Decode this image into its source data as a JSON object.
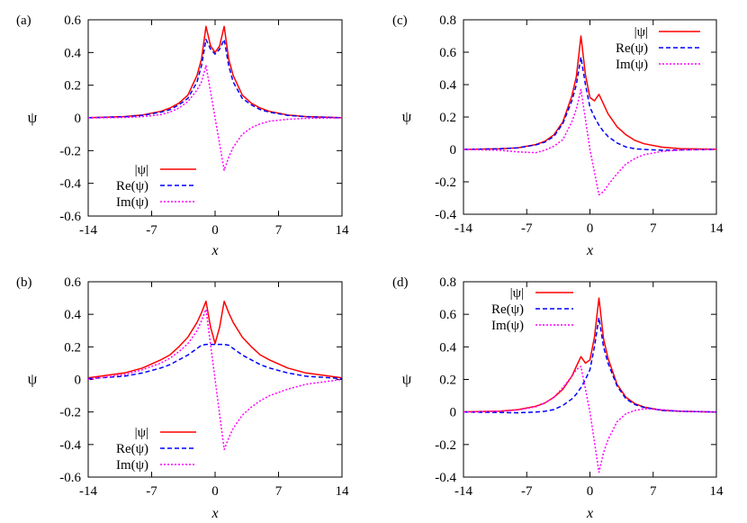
{
  "chart_data": [
    {
      "panel_label": "(a)",
      "type": "line",
      "xlabel": "x",
      "ylabel": "ψ",
      "xlim": [
        -14,
        14
      ],
      "ylim": [
        -0.6,
        0.6
      ],
      "xticks": [
        "-14",
        "-7",
        "0",
        "7",
        "14"
      ],
      "yticks": [
        "-0.6",
        "-0.4",
        "-0.2",
        "0",
        "0.2",
        "0.4",
        "0.6"
      ],
      "legend_position": "bottom-left",
      "series": [
        {
          "name": "|ψ|",
          "color": "#ff0000",
          "dash": "solid",
          "x": [
            -14,
            -10,
            -8,
            -6,
            -5,
            -4,
            -3,
            -2,
            -1.5,
            -1,
            -0.5,
            0,
            0.5,
            1,
            1.5,
            2,
            3,
            4,
            5,
            6,
            8,
            10,
            14
          ],
          "y": [
            0.001,
            0.008,
            0.018,
            0.04,
            0.06,
            0.09,
            0.14,
            0.26,
            0.36,
            0.56,
            0.44,
            0.4,
            0.44,
            0.56,
            0.36,
            0.26,
            0.14,
            0.09,
            0.06,
            0.04,
            0.018,
            0.008,
            0.001
          ]
        },
        {
          "name": "Re(ψ)",
          "color": "#0000ff",
          "dash": "dashed",
          "x": [
            -14,
            -10,
            -8,
            -6,
            -5,
            -4,
            -3,
            -2,
            -1.5,
            -1,
            -0.5,
            0,
            0.5,
            1,
            1.5,
            2,
            3,
            4,
            5,
            6,
            8,
            10,
            14
          ],
          "y": [
            0.001,
            0.007,
            0.016,
            0.035,
            0.05,
            0.08,
            0.12,
            0.22,
            0.32,
            0.48,
            0.42,
            0.39,
            0.42,
            0.48,
            0.32,
            0.22,
            0.12,
            0.08,
            0.05,
            0.035,
            0.016,
            0.007,
            0.001
          ]
        },
        {
          "name": "Im(ψ)",
          "color": "#ff00ff",
          "dash": "dotted",
          "x": [
            -14,
            -10,
            -8,
            -6,
            -5,
            -4,
            -3,
            -2,
            -1.5,
            -1,
            0,
            1,
            1.5,
            2,
            3,
            4,
            5,
            6,
            8,
            10,
            14
          ],
          "y": [
            0.0,
            0.003,
            0.008,
            0.02,
            0.035,
            0.06,
            0.1,
            0.17,
            0.22,
            0.32,
            0.0,
            -0.32,
            -0.24,
            -0.18,
            -0.1,
            -0.06,
            -0.035,
            -0.02,
            -0.008,
            -0.003,
            0.0
          ]
        }
      ]
    },
    {
      "panel_label": "(c)",
      "type": "line",
      "xlabel": "x",
      "ylabel": "ψ",
      "xlim": [
        -14,
        14
      ],
      "ylim": [
        -0.4,
        0.8
      ],
      "xticks": [
        "-14",
        "-7",
        "0",
        "7",
        "14"
      ],
      "yticks": [
        "-0.4",
        "-0.2",
        "0",
        "0.2",
        "0.4",
        "0.6",
        "0.8"
      ],
      "legend_position": "top-right",
      "series": [
        {
          "name": "|ψ|",
          "color": "#ff0000",
          "dash": "solid",
          "x": [
            -14,
            -10,
            -8,
            -6,
            -5,
            -4,
            -3,
            -2,
            -1.5,
            -1,
            -0.5,
            0,
            0.5,
            1,
            1.5,
            2,
            3,
            4,
            5,
            6,
            8,
            10,
            14
          ],
          "y": [
            0.0,
            0.004,
            0.01,
            0.03,
            0.05,
            0.09,
            0.17,
            0.33,
            0.45,
            0.7,
            0.46,
            0.32,
            0.3,
            0.34,
            0.28,
            0.22,
            0.14,
            0.09,
            0.055,
            0.035,
            0.014,
            0.005,
            0.001
          ]
        },
        {
          "name": "Re(ψ)",
          "color": "#0000ff",
          "dash": "dashed",
          "x": [
            -14,
            -10,
            -8,
            -6,
            -5,
            -4,
            -3,
            -2,
            -1.5,
            -1,
            -0.5,
            0,
            0.5,
            1,
            1.5,
            2,
            3,
            4,
            5,
            6,
            8,
            10,
            14
          ],
          "y": [
            0.0,
            0.004,
            0.01,
            0.028,
            0.045,
            0.08,
            0.16,
            0.3,
            0.4,
            0.57,
            0.4,
            0.26,
            0.2,
            0.15,
            0.11,
            0.08,
            0.04,
            0.015,
            0.004,
            0.0,
            -0.005,
            -0.003,
            0.0
          ]
        },
        {
          "name": "Im(ψ)",
          "color": "#ff00ff",
          "dash": "dotted",
          "x": [
            -14,
            -10,
            -8,
            -6,
            -5,
            -4,
            -3,
            -2,
            -1.5,
            -1,
            0,
            1,
            1.5,
            2,
            3,
            4,
            5,
            6,
            8,
            10,
            14
          ],
          "y": [
            0.0,
            -0.005,
            -0.015,
            -0.02,
            -0.005,
            0.02,
            0.06,
            0.17,
            0.25,
            0.37,
            0.0,
            -0.28,
            -0.26,
            -0.22,
            -0.15,
            -0.09,
            -0.055,
            -0.032,
            -0.012,
            -0.004,
            0.0
          ]
        }
      ]
    },
    {
      "panel_label": "(b)",
      "type": "line",
      "xlabel": "x",
      "ylabel": "ψ",
      "xlim": [
        -14,
        14
      ],
      "ylim": [
        -0.6,
        0.6
      ],
      "xticks": [
        "-14",
        "-7",
        "0",
        "7",
        "14"
      ],
      "yticks": [
        "-0.6",
        "-0.4",
        "-0.2",
        "0",
        "0.2",
        "0.4",
        "0.6"
      ],
      "legend_position": "bottom-left",
      "series": [
        {
          "name": "|ψ|",
          "color": "#ff0000",
          "dash": "solid",
          "x": [
            -14,
            -10,
            -8,
            -6,
            -5,
            -4,
            -3,
            -2,
            -1.5,
            -1,
            -0.5,
            0,
            0.5,
            1,
            1.5,
            2,
            3,
            4,
            5,
            6,
            8,
            10,
            14
          ],
          "y": [
            0.01,
            0.04,
            0.07,
            0.12,
            0.15,
            0.2,
            0.26,
            0.35,
            0.41,
            0.48,
            0.32,
            0.22,
            0.32,
            0.48,
            0.41,
            0.35,
            0.26,
            0.2,
            0.15,
            0.12,
            0.07,
            0.04,
            0.01
          ]
        },
        {
          "name": "Re(ψ)",
          "color": "#0000ff",
          "dash": "dashed",
          "x": [
            -14,
            -10,
            -8,
            -6,
            -5,
            -4,
            -3,
            -2,
            -1.5,
            -1,
            -0.5,
            0,
            0.5,
            1,
            1.5,
            2,
            3,
            4,
            5,
            6,
            8,
            10,
            14
          ],
          "y": [
            0.005,
            0.02,
            0.04,
            0.07,
            0.09,
            0.12,
            0.15,
            0.19,
            0.21,
            0.215,
            0.215,
            0.215,
            0.215,
            0.215,
            0.21,
            0.19,
            0.15,
            0.12,
            0.09,
            0.07,
            0.04,
            0.02,
            0.005
          ]
        },
        {
          "name": "Im(ψ)",
          "color": "#ff00ff",
          "dash": "dotted",
          "x": [
            -14,
            -10,
            -8,
            -6,
            -5,
            -4,
            -3,
            -2,
            -1.5,
            -1,
            0,
            1,
            1.5,
            2,
            3,
            4,
            5,
            6,
            8,
            10,
            14
          ],
          "y": [
            0.0,
            0.03,
            0.06,
            0.1,
            0.13,
            0.17,
            0.22,
            0.3,
            0.36,
            0.43,
            0.0,
            -0.43,
            -0.36,
            -0.3,
            -0.22,
            -0.17,
            -0.13,
            -0.1,
            -0.06,
            -0.03,
            0.0
          ]
        }
      ]
    },
    {
      "panel_label": "(d)",
      "type": "line",
      "xlabel": "x",
      "ylabel": "ψ",
      "xlim": [
        -14,
        14
      ],
      "ylim": [
        -0.4,
        0.8
      ],
      "xticks": [
        "-14",
        "-7",
        "0",
        "7",
        "14"
      ],
      "yticks": [
        "-0.4",
        "-0.2",
        "0",
        "0.2",
        "0.4",
        "0.6",
        "0.8"
      ],
      "legend_position": "top-left",
      "series": [
        {
          "name": "|ψ|",
          "color": "#ff0000",
          "dash": "solid",
          "x": [
            -14,
            -10,
            -8,
            -6,
            -5,
            -4,
            -3,
            -2,
            -1.5,
            -1,
            -0.5,
            0,
            0.5,
            1,
            1.5,
            2,
            3,
            4,
            5,
            6,
            8,
            10,
            14
          ],
          "y": [
            0.001,
            0.005,
            0.014,
            0.035,
            0.055,
            0.09,
            0.14,
            0.22,
            0.28,
            0.34,
            0.3,
            0.32,
            0.46,
            0.7,
            0.45,
            0.33,
            0.17,
            0.09,
            0.05,
            0.03,
            0.01,
            0.004,
            0.0
          ]
        },
        {
          "name": "Re(ψ)",
          "color": "#0000ff",
          "dash": "dashed",
          "x": [
            -14,
            -10,
            -8,
            -6,
            -5,
            -4,
            -3,
            -2,
            -1.5,
            -1,
            -0.5,
            0,
            0.5,
            1,
            1.5,
            2,
            3,
            4,
            5,
            6,
            8,
            10,
            14
          ],
          "y": [
            0.0,
            -0.003,
            -0.005,
            0.0,
            0.004,
            0.015,
            0.04,
            0.08,
            0.11,
            0.15,
            0.2,
            0.26,
            0.4,
            0.58,
            0.4,
            0.3,
            0.16,
            0.08,
            0.045,
            0.028,
            0.01,
            0.004,
            0.0
          ]
        },
        {
          "name": "Im(ψ)",
          "color": "#ff00ff",
          "dash": "dotted",
          "x": [
            -14,
            -10,
            -8,
            -6,
            -5,
            -4,
            -3,
            -2,
            -1.5,
            -1,
            0,
            1,
            1.5,
            2,
            3,
            4,
            5,
            6,
            8,
            10,
            14
          ],
          "y": [
            0.0,
            0.004,
            0.012,
            0.032,
            0.055,
            0.09,
            0.15,
            0.22,
            0.26,
            0.28,
            0.0,
            -0.37,
            -0.25,
            -0.17,
            -0.06,
            -0.01,
            0.01,
            0.02,
            0.015,
            0.005,
            0.0
          ]
        }
      ]
    }
  ]
}
